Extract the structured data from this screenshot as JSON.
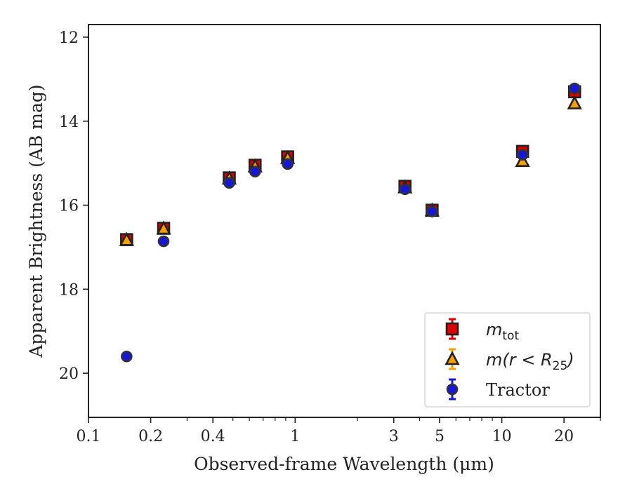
{
  "chart_data": {
    "type": "scatter",
    "xlabel": "Observed-frame Wavelength (μm)",
    "ylabel": "Apparent Brightness (AB mag)",
    "x_scale": "log",
    "xlim": [
      0.1,
      30
    ],
    "ylim": [
      21.05,
      11.7
    ],
    "y_inverted": true,
    "x_ticks": [
      {
        "value": 0.1,
        "label": "0.1"
      },
      {
        "value": 0.2,
        "label": "0.2"
      },
      {
        "value": 0.4,
        "label": "0.4"
      },
      {
        "value": 1,
        "label": "1"
      },
      {
        "value": 3,
        "label": "3"
      },
      {
        "value": 5,
        "label": "5"
      },
      {
        "value": 10,
        "label": "10"
      },
      {
        "value": 20,
        "label": "20"
      }
    ],
    "y_ticks": [
      {
        "value": 12,
        "label": "12"
      },
      {
        "value": 14,
        "label": "14"
      },
      {
        "value": 16,
        "label": "16"
      },
      {
        "value": 18,
        "label": "18"
      },
      {
        "value": 20,
        "label": "20"
      }
    ],
    "grid": false,
    "legend_position": "lower-right",
    "series": [
      {
        "name": "m_tot",
        "legend_main": "m",
        "legend_sub": "tot",
        "marker": "square",
        "color": "#e00000",
        "edgecolor": "#222222",
        "points": [
          {
            "x": 0.153,
            "y": 16.82
          },
          {
            "x": 0.231,
            "y": 16.55
          },
          {
            "x": 0.48,
            "y": 15.35
          },
          {
            "x": 0.64,
            "y": 15.05
          },
          {
            "x": 0.92,
            "y": 14.85
          },
          {
            "x": 3.4,
            "y": 15.55
          },
          {
            "x": 4.6,
            "y": 16.12
          },
          {
            "x": 12.6,
            "y": 14.72
          },
          {
            "x": 22.5,
            "y": 13.3
          }
        ]
      },
      {
        "name": "m(r < R_25)",
        "legend_main": "m(r < R",
        "legend_sub": "25",
        "legend_tail": ")",
        "marker": "triangle",
        "color": "#f5a000",
        "edgecolor": "#222222",
        "points": [
          {
            "x": 0.153,
            "y": 16.83
          },
          {
            "x": 0.231,
            "y": 16.56
          },
          {
            "x": 0.48,
            "y": 15.37
          },
          {
            "x": 0.64,
            "y": 15.08
          },
          {
            "x": 0.92,
            "y": 14.88
          },
          {
            "x": 3.4,
            "y": 15.58
          },
          {
            "x": 4.6,
            "y": 16.13
          },
          {
            "x": 12.6,
            "y": 14.95
          },
          {
            "x": 22.5,
            "y": 13.58
          }
        ]
      },
      {
        "name": "Tractor",
        "legend_main": "Tractor",
        "marker": "circle",
        "color": "#1515e0",
        "edgecolor": "#333333",
        "points": [
          {
            "x": 0.153,
            "y": 19.6
          },
          {
            "x": 0.231,
            "y": 16.86
          },
          {
            "x": 0.48,
            "y": 15.47
          },
          {
            "x": 0.64,
            "y": 15.2
          },
          {
            "x": 0.92,
            "y": 15.02
          },
          {
            "x": 3.4,
            "y": 15.62
          },
          {
            "x": 4.6,
            "y": 16.15
          },
          {
            "x": 12.6,
            "y": 14.8
          },
          {
            "x": 22.5,
            "y": 13.22
          }
        ]
      }
    ]
  }
}
